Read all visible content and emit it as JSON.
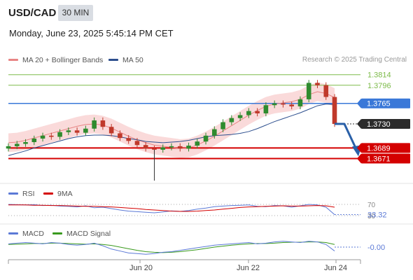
{
  "header": {
    "pair": "USD/CAD",
    "timeframe": "30 MIN",
    "datetime": "Monday, June 23, 2025 5:45:14 PM CET"
  },
  "legend": {
    "ma20_label": "MA 20 + Bollinger Bands",
    "ma50_label": "MA 50",
    "credit": "Research © 2025 Trading Central"
  },
  "colors": {
    "ma20": "#e88585",
    "bollinger_fill": "#f9d3d3",
    "ma50": "#2d4f8e",
    "candle_up": "#2e8b2e",
    "candle_down": "#c0392b",
    "resistance": "#7dbb4a",
    "pivot": "#3a78d8",
    "support": "#d40000",
    "arrow": "#2a60a8",
    "rsi": "#5b79d6",
    "rsi_ma": "#d40000",
    "macd": "#5b79d6",
    "macd_signal": "#3a9a1e"
  },
  "rsi_panel": {
    "rsi_label": "RSI",
    "ma_label": "9MA",
    "level_70": "70",
    "level_30": "30",
    "value": "33.32"
  },
  "macd_panel": {
    "macd_label": "MACD",
    "signal_label": "MACD Signal",
    "value": "-0.00"
  },
  "x_axis": {
    "labels": [
      "Jun 20",
      "Jun 22",
      "Jun 24"
    ]
  },
  "chart_data": {
    "type": "candlestick",
    "instrument": "USD/CAD",
    "interval": "30 MIN",
    "ylim": [
      1.3662,
      1.3822
    ],
    "levels": [
      {
        "value": 1.3814,
        "label": "1.3814",
        "kind": "resistance"
      },
      {
        "value": 1.3796,
        "label": "1.3796",
        "kind": "resistance"
      },
      {
        "value": 1.3765,
        "label": "1.3765",
        "kind": "pivot"
      },
      {
        "value": 1.373,
        "label": "1.3730",
        "kind": "last"
      },
      {
        "value": 1.3689,
        "label": "1.3689",
        "kind": "support"
      },
      {
        "value": 1.3671,
        "label": "1.3671",
        "kind": "support"
      }
    ],
    "series": [
      {
        "name": "MA 20",
        "values": [
          1.3698,
          1.3699,
          1.3702,
          1.3706,
          1.371,
          1.3714,
          1.3718,
          1.3722,
          1.3726,
          1.3729,
          1.373,
          1.3728,
          1.3723,
          1.3716,
          1.3709,
          1.3703,
          1.3698,
          1.3694,
          1.3692,
          1.369,
          1.3688,
          1.3689,
          1.3694,
          1.3701,
          1.3709,
          1.3718,
          1.3727,
          1.3736,
          1.3745,
          1.3753,
          1.376,
          1.3764,
          1.3766,
          1.3768,
          1.3772,
          1.378,
          1.3785,
          1.3782,
          1.3775
        ]
      },
      {
        "name": "MA 50",
        "values": [
          1.3676,
          1.368,
          1.3684,
          1.3689,
          1.3693,
          1.3697,
          1.3701,
          1.3705,
          1.3708,
          1.371,
          1.3711,
          1.3711,
          1.371,
          1.3708,
          1.3705,
          1.3703,
          1.37,
          1.3699,
          1.3698,
          1.3699,
          1.37,
          1.3702,
          1.3705,
          1.3708,
          1.371,
          1.3711,
          1.3712,
          1.3714,
          1.3717,
          1.3722,
          1.3728,
          1.3734,
          1.3739,
          1.3744,
          1.3749,
          1.3755,
          1.3761,
          1.3764,
          1.3763
        ]
      },
      {
        "name": "Close",
        "values": [
          1.3692,
          1.3696,
          1.3699,
          1.3705,
          1.371,
          1.3708,
          1.3716,
          1.3719,
          1.3715,
          1.3722,
          1.3736,
          1.3725,
          1.3714,
          1.3706,
          1.3701,
          1.3694,
          1.3688,
          1.3686,
          1.369,
          1.3692,
          1.3688,
          1.3693,
          1.37,
          1.371,
          1.3721,
          1.3733,
          1.374,
          1.3745,
          1.3752,
          1.3748,
          1.3762,
          1.3765,
          1.3763,
          1.376,
          1.3772,
          1.38,
          1.3796,
          1.3776,
          1.373
        ]
      }
    ],
    "rsi": {
      "name": "RSI",
      "ylim": [
        20,
        80
      ],
      "values": [
        70,
        69,
        68,
        69,
        66,
        67,
        64,
        63,
        61,
        65,
        58,
        60,
        55,
        50,
        46,
        44,
        42,
        40,
        43,
        47,
        45,
        48,
        53,
        57,
        62,
        64,
        66,
        67,
        68,
        63,
        62,
        66,
        65,
        60,
        65,
        70,
        68,
        60,
        33.32
      ]
    },
    "rsi_ma": {
      "name": "9MA",
      "ylim": [
        20,
        80
      ],
      "values": [
        68,
        68,
        68,
        67,
        67,
        66,
        66,
        65,
        64,
        63,
        63,
        62,
        61,
        59,
        57,
        55,
        52,
        50,
        48,
        46,
        45,
        45,
        46,
        48,
        50,
        53,
        56,
        59,
        61,
        62,
        63,
        64,
        65,
        64,
        64,
        65,
        66,
        65,
        60
      ]
    },
    "macd": {
      "name": "MACD",
      "values": [
        0.5,
        0.6,
        0.7,
        0.6,
        0.5,
        0.7,
        0.6,
        0.4,
        0.3,
        0.4,
        0.6,
        0.2,
        -0.3,
        -0.6,
        -0.9,
        -1.0,
        -1.1,
        -1.0,
        -0.8,
        -0.7,
        -0.5,
        -0.3,
        -0.1,
        0.1,
        0.3,
        0.4,
        0.5,
        0.6,
        0.7,
        0.5,
        0.6,
        0.8,
        0.9,
        0.8,
        0.7,
        0.9,
        0.8,
        0.4,
        -0.6
      ]
    },
    "macd_signal": {
      "name": "MACD Signal",
      "values": [
        0.4,
        0.45,
        0.5,
        0.55,
        0.55,
        0.6,
        0.6,
        0.55,
        0.5,
        0.45,
        0.5,
        0.4,
        0.25,
        0.0,
        -0.25,
        -0.5,
        -0.7,
        -0.8,
        -0.85,
        -0.8,
        -0.7,
        -0.55,
        -0.4,
        -0.2,
        0.0,
        0.15,
        0.3,
        0.4,
        0.5,
        0.55,
        0.55,
        0.6,
        0.7,
        0.75,
        0.75,
        0.8,
        0.8,
        0.7,
        0.4
      ]
    },
    "macd_ylim": [
      -1.4,
      1.4
    ]
  }
}
